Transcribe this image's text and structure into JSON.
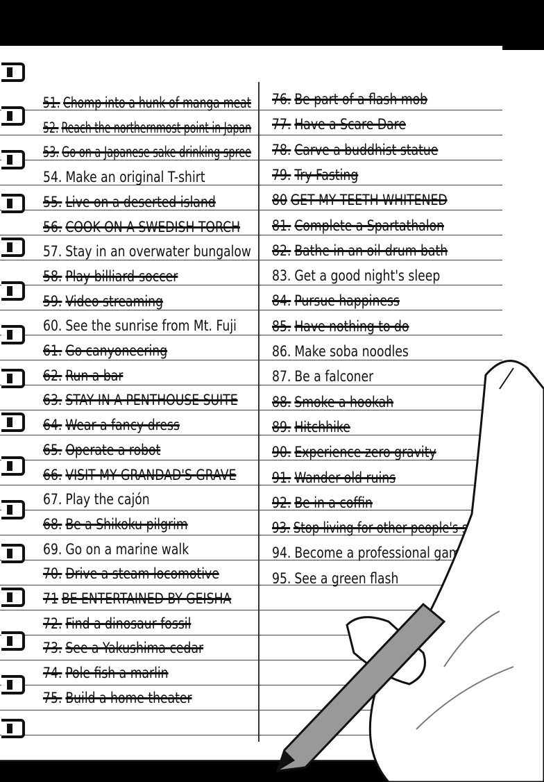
{
  "left_column": [
    {
      "num": "51.",
      "text": "Chomp into a hunk of manga meat",
      "crossed_out": true
    },
    {
      "num": "52.",
      "text": "Reach the northernmost point in Japan",
      "crossed_out": true
    },
    {
      "num": "53.",
      "text": "Go on a Japanese sake drinking spree",
      "crossed_out": true
    },
    {
      "num": "54.",
      "text": "Make an original T-shirt",
      "crossed_out": false
    },
    {
      "num": "55.",
      "text": "Live on a deserted island",
      "crossed_out": true
    },
    {
      "num": "56.",
      "text": "COOK ON A SWEDISH TORCH",
      "crossed_out": true
    },
    {
      "num": "57.",
      "text": "Stay in an overwater bungalow",
      "crossed_out": false
    },
    {
      "num": "58.",
      "text": "Play billiard-soccer",
      "crossed_out": true
    },
    {
      "num": "59.",
      "text": "Video streaming",
      "crossed_out": true
    },
    {
      "num": "60.",
      "text": "See the sunrise from Mt. Fuji",
      "crossed_out": false
    },
    {
      "num": "61.",
      "text": "Go canyoneering",
      "crossed_out": true
    },
    {
      "num": "62.",
      "text": "Run a bar",
      "crossed_out": true
    },
    {
      "num": "63.",
      "text": "STAY IN A PENTHOUSE SUITE",
      "crossed_out": true
    },
    {
      "num": "64.",
      "text": "Wear a fancy dress",
      "crossed_out": true
    },
    {
      "num": "65.",
      "text": "Operate a robot",
      "crossed_out": true
    },
    {
      "num": "66.",
      "text": "VISIT MY GRANDAD'S GRAVE",
      "crossed_out": true
    },
    {
      "num": "67.",
      "text": "Play the cajón",
      "crossed_out": false
    },
    {
      "num": "68.",
      "text": "Be a Shikoku pilgrim",
      "crossed_out": true
    },
    {
      "num": "69.",
      "text": "Go on a marine walk",
      "crossed_out": false
    },
    {
      "num": "70.",
      "text": "Drive a steam locomotive",
      "crossed_out": true
    },
    {
      "num": "71",
      "text": "BE ENTERTAINED BY GEISHA",
      "crossed_out": true
    },
    {
      "num": "72.",
      "text": "Find a dinosaur fossil",
      "crossed_out": true
    },
    {
      "num": "73.",
      "text": "See a Yakushima cedar",
      "crossed_out": true
    },
    {
      "num": "74.",
      "text": "Pole fish a marlin",
      "crossed_out": true
    },
    {
      "num": "75.",
      "text": "Build a home theater",
      "crossed_out": true
    }
  ],
  "right_column": [
    {
      "num": "76.",
      "text": "Be part of a flash mob",
      "crossed_out": true
    },
    {
      "num": "77.",
      "text": "Have a Scare Dare",
      "crossed_out": true
    },
    {
      "num": "78.",
      "text": "Carve a buddhist statue",
      "crossed_out": true
    },
    {
      "num": "79.",
      "text": "Try Fasting",
      "crossed_out": true
    },
    {
      "num": "80",
      "text": "GET MY TEETH WHITENED",
      "crossed_out": true
    },
    {
      "num": "81.",
      "text": "Complete a Spartathalon",
      "crossed_out": true
    },
    {
      "num": "82.",
      "text": "Bathe in an oil-drum bath",
      "crossed_out": true
    },
    {
      "num": "83.",
      "text": "Get a good night's sleep",
      "crossed_out": false
    },
    {
      "num": "84.",
      "text": "Pursue happiness",
      "crossed_out": true
    },
    {
      "num": "85.",
      "text": "Have nothing to do",
      "crossed_out": true
    },
    {
      "num": "86.",
      "text": "Make soba noodles",
      "crossed_out": false
    },
    {
      "num": "87.",
      "text": "Be a falconer",
      "crossed_out": false
    },
    {
      "num": "88.",
      "text": "Smoke a hookah",
      "crossed_out": true
    },
    {
      "num": "89.",
      "text": "Hitchhike",
      "crossed_out": true
    },
    {
      "num": "90.",
      "text": "Experience zero gravity",
      "crossed_out": true
    },
    {
      "num": "91.",
      "text": "Wander old ruins",
      "crossed_out": true
    },
    {
      "num": "92.",
      "text": "Be in a coffin",
      "crossed_out": true
    },
    {
      "num": "93.",
      "text": "Stop living for other people's sakes",
      "crossed_out": true
    },
    {
      "num": "94.",
      "text": "Become a professional gamer",
      "crossed_out": false
    },
    {
      "num": "95.",
      "text": "See a green flash",
      "crossed_out": false
    }
  ]
}
